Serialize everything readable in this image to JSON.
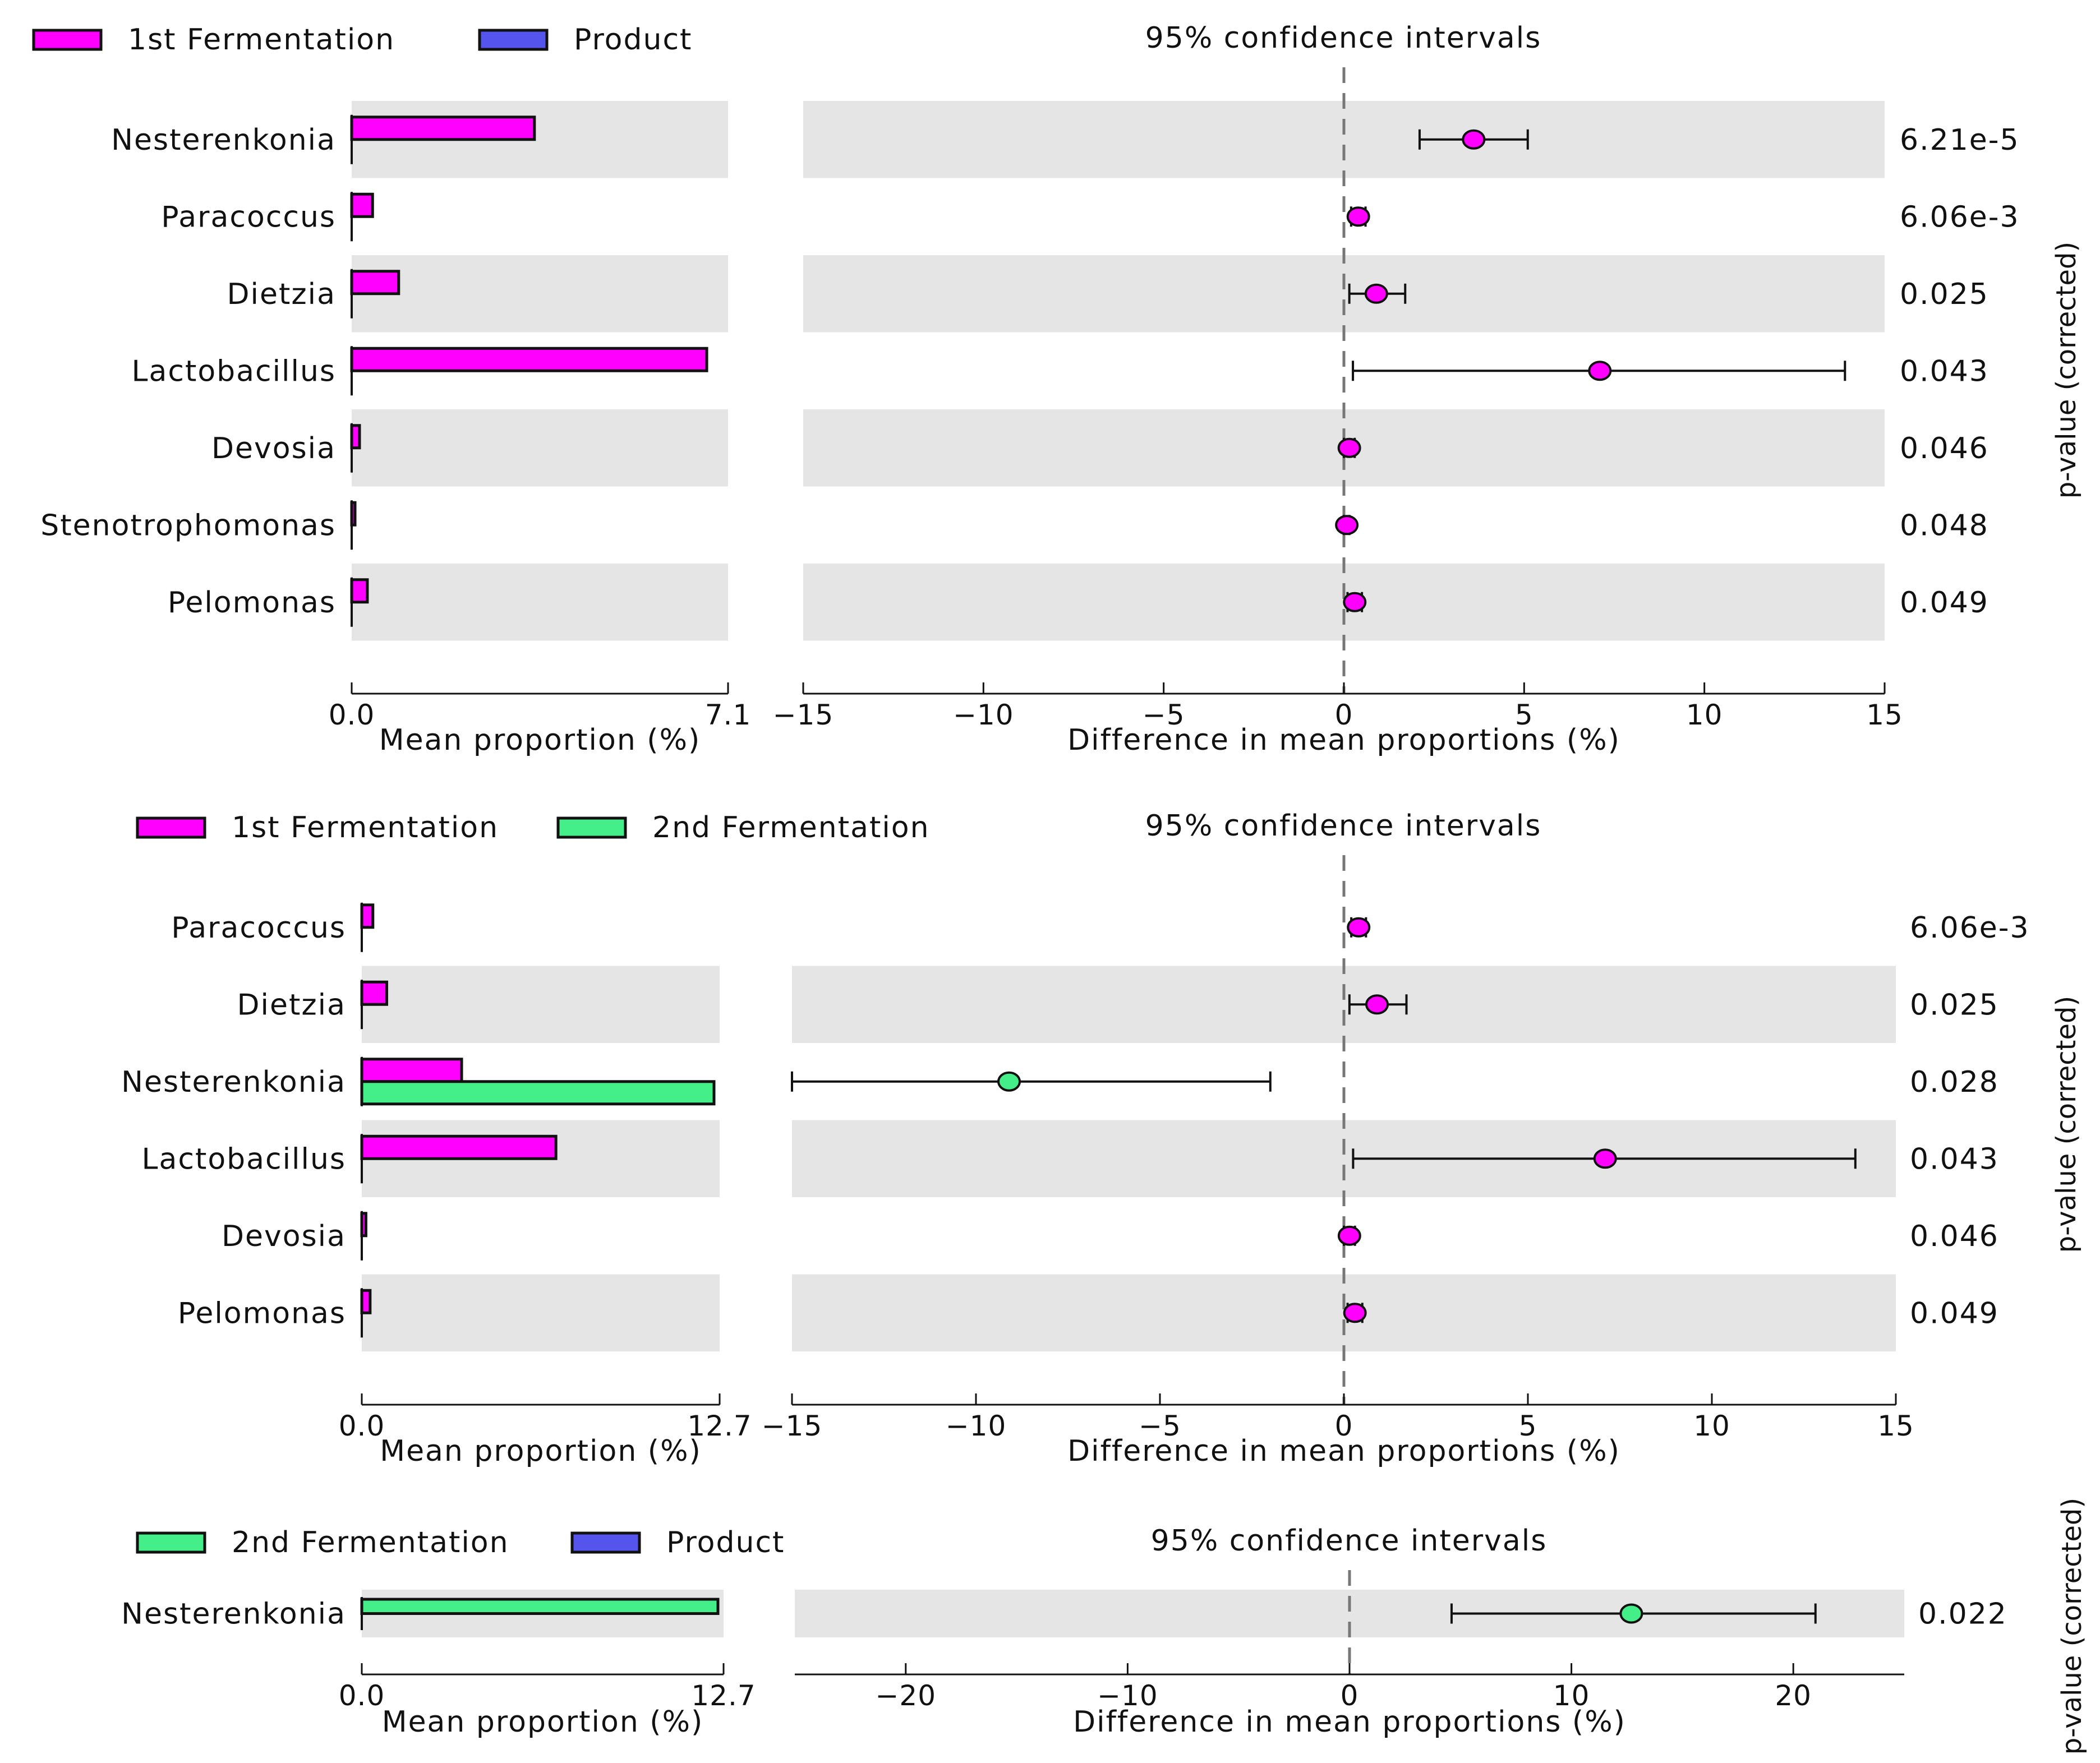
{
  "pvalue_axis_label": "p-value (corrected)",
  "chart_data": [
    {
      "type": "bar",
      "legend": [
        {
          "name": "1st Fermentation",
          "color": "#ff00ff"
        },
        {
          "name": "Product",
          "color": "#5555ee"
        }
      ],
      "ci_title": "95% confidence intervals",
      "taxa": [
        "Nesterenkonia",
        "Paracoccus",
        "Dietzia",
        "Lactobacillus",
        "Devosia",
        "Stenotrophomonas",
        "Pelomonas"
      ],
      "mean_proportion": {
        "series": [
          {
            "name": "1st Fermentation",
            "values": [
              3.5,
              0.4,
              0.9,
              6.8,
              0.15,
              0.06,
              0.3
            ]
          },
          {
            "name": "Product",
            "values": [
              0,
              0,
              0,
              0,
              0,
              0,
              0
            ]
          }
        ],
        "xlim": [
          0.0,
          7.1
        ],
        "ticks": [
          "0.0",
          "7.1"
        ],
        "xlabel": "Mean proportion (%)"
      },
      "difference": {
        "estimate": [
          3.6,
          0.4,
          0.9,
          7.1,
          0.15,
          0.08,
          0.3
        ],
        "ci_low": [
          2.1,
          0.2,
          0.15,
          0.25,
          0.0,
          0.0,
          0.1
        ],
        "ci_high": [
          5.1,
          0.6,
          1.7,
          13.9,
          0.3,
          0.15,
          0.5
        ],
        "color": [
          "#ff00ff",
          "#ff00ff",
          "#ff00ff",
          "#ff00ff",
          "#ff00ff",
          "#ff00ff",
          "#ff00ff"
        ],
        "xlim": [
          -15,
          15
        ],
        "ticks": [
          "−15",
          "−10",
          "−5",
          "0",
          "5",
          "10",
          "15"
        ],
        "tick_values": [
          -15,
          -10,
          -5,
          0,
          5,
          10,
          15
        ],
        "xlabel": "Difference in mean proportions (%)"
      },
      "pvalues": [
        "6.21e-5",
        "6.06e-3",
        "0.025",
        "0.043",
        "0.046",
        "0.048",
        "0.049"
      ]
    },
    {
      "type": "bar",
      "legend": [
        {
          "name": "1st Fermentation",
          "color": "#ff00ff"
        },
        {
          "name": "2nd Fermentation",
          "color": "#44ee88"
        }
      ],
      "ci_title": "95% confidence intervals",
      "taxa": [
        "Paracoccus",
        "Dietzia",
        "Nesterenkonia",
        "Lactobacillus",
        "Devosia",
        "Pelomonas"
      ],
      "mean_proportion": {
        "series": [
          {
            "name": "1st Fermentation",
            "values": [
              0.4,
              0.9,
              3.6,
              7.0,
              0.15,
              0.3
            ]
          },
          {
            "name": "2nd Fermentation",
            "values": [
              0,
              0,
              12.7,
              0,
              0,
              0
            ]
          }
        ],
        "xlim": [
          0.0,
          12.7
        ],
        "ticks": [
          "0.0",
          "12.7"
        ],
        "xlabel": "Mean proportion (%)"
      },
      "difference": {
        "estimate": [
          0.4,
          0.9,
          -9.1,
          7.1,
          0.15,
          0.3
        ],
        "ci_low": [
          0.2,
          0.15,
          -15.0,
          0.25,
          0.0,
          0.1
        ],
        "ci_high": [
          0.6,
          1.7,
          -2.0,
          13.9,
          0.3,
          0.5
        ],
        "color": [
          "#ff00ff",
          "#ff00ff",
          "#44ee88",
          "#ff00ff",
          "#ff00ff",
          "#ff00ff"
        ],
        "xlim": [
          -15,
          15
        ],
        "ticks": [
          "−15",
          "−10",
          "−5",
          "0",
          "5",
          "10",
          "15"
        ],
        "tick_values": [
          -15,
          -10,
          -5,
          0,
          5,
          10,
          15
        ],
        "xlabel": "Difference in mean proportions (%)"
      },
      "pvalues": [
        "6.06e-3",
        "0.025",
        "0.028",
        "0.043",
        "0.046",
        "0.049"
      ]
    },
    {
      "type": "bar",
      "legend": [
        {
          "name": "2nd Fermentation",
          "color": "#44ee88"
        },
        {
          "name": "Product",
          "color": "#5555ee"
        }
      ],
      "ci_title": "95% confidence intervals",
      "taxa": [
        "Nesterenkonia"
      ],
      "mean_proportion": {
        "series": [
          {
            "name": "2nd Fermentation",
            "values": [
              12.7
            ]
          },
          {
            "name": "Product",
            "values": [
              0
            ]
          }
        ],
        "xlim": [
          0.0,
          12.7
        ],
        "ticks": [
          "0.0",
          "12.7"
        ],
        "xlabel": "Mean proportion (%)"
      },
      "difference": {
        "estimate": [
          12.7
        ],
        "ci_low": [
          4.6
        ],
        "ci_high": [
          21.0
        ],
        "color": [
          "#44ee88"
        ],
        "xlim": [
          -25,
          25
        ],
        "ticks": [
          "−20",
          "−10",
          "0",
          "10",
          "20"
        ],
        "tick_values": [
          -20,
          -10,
          0,
          10,
          20
        ],
        "xlabel": "Difference in mean proportions (%)"
      },
      "pvalues": [
        "0.022"
      ]
    }
  ]
}
